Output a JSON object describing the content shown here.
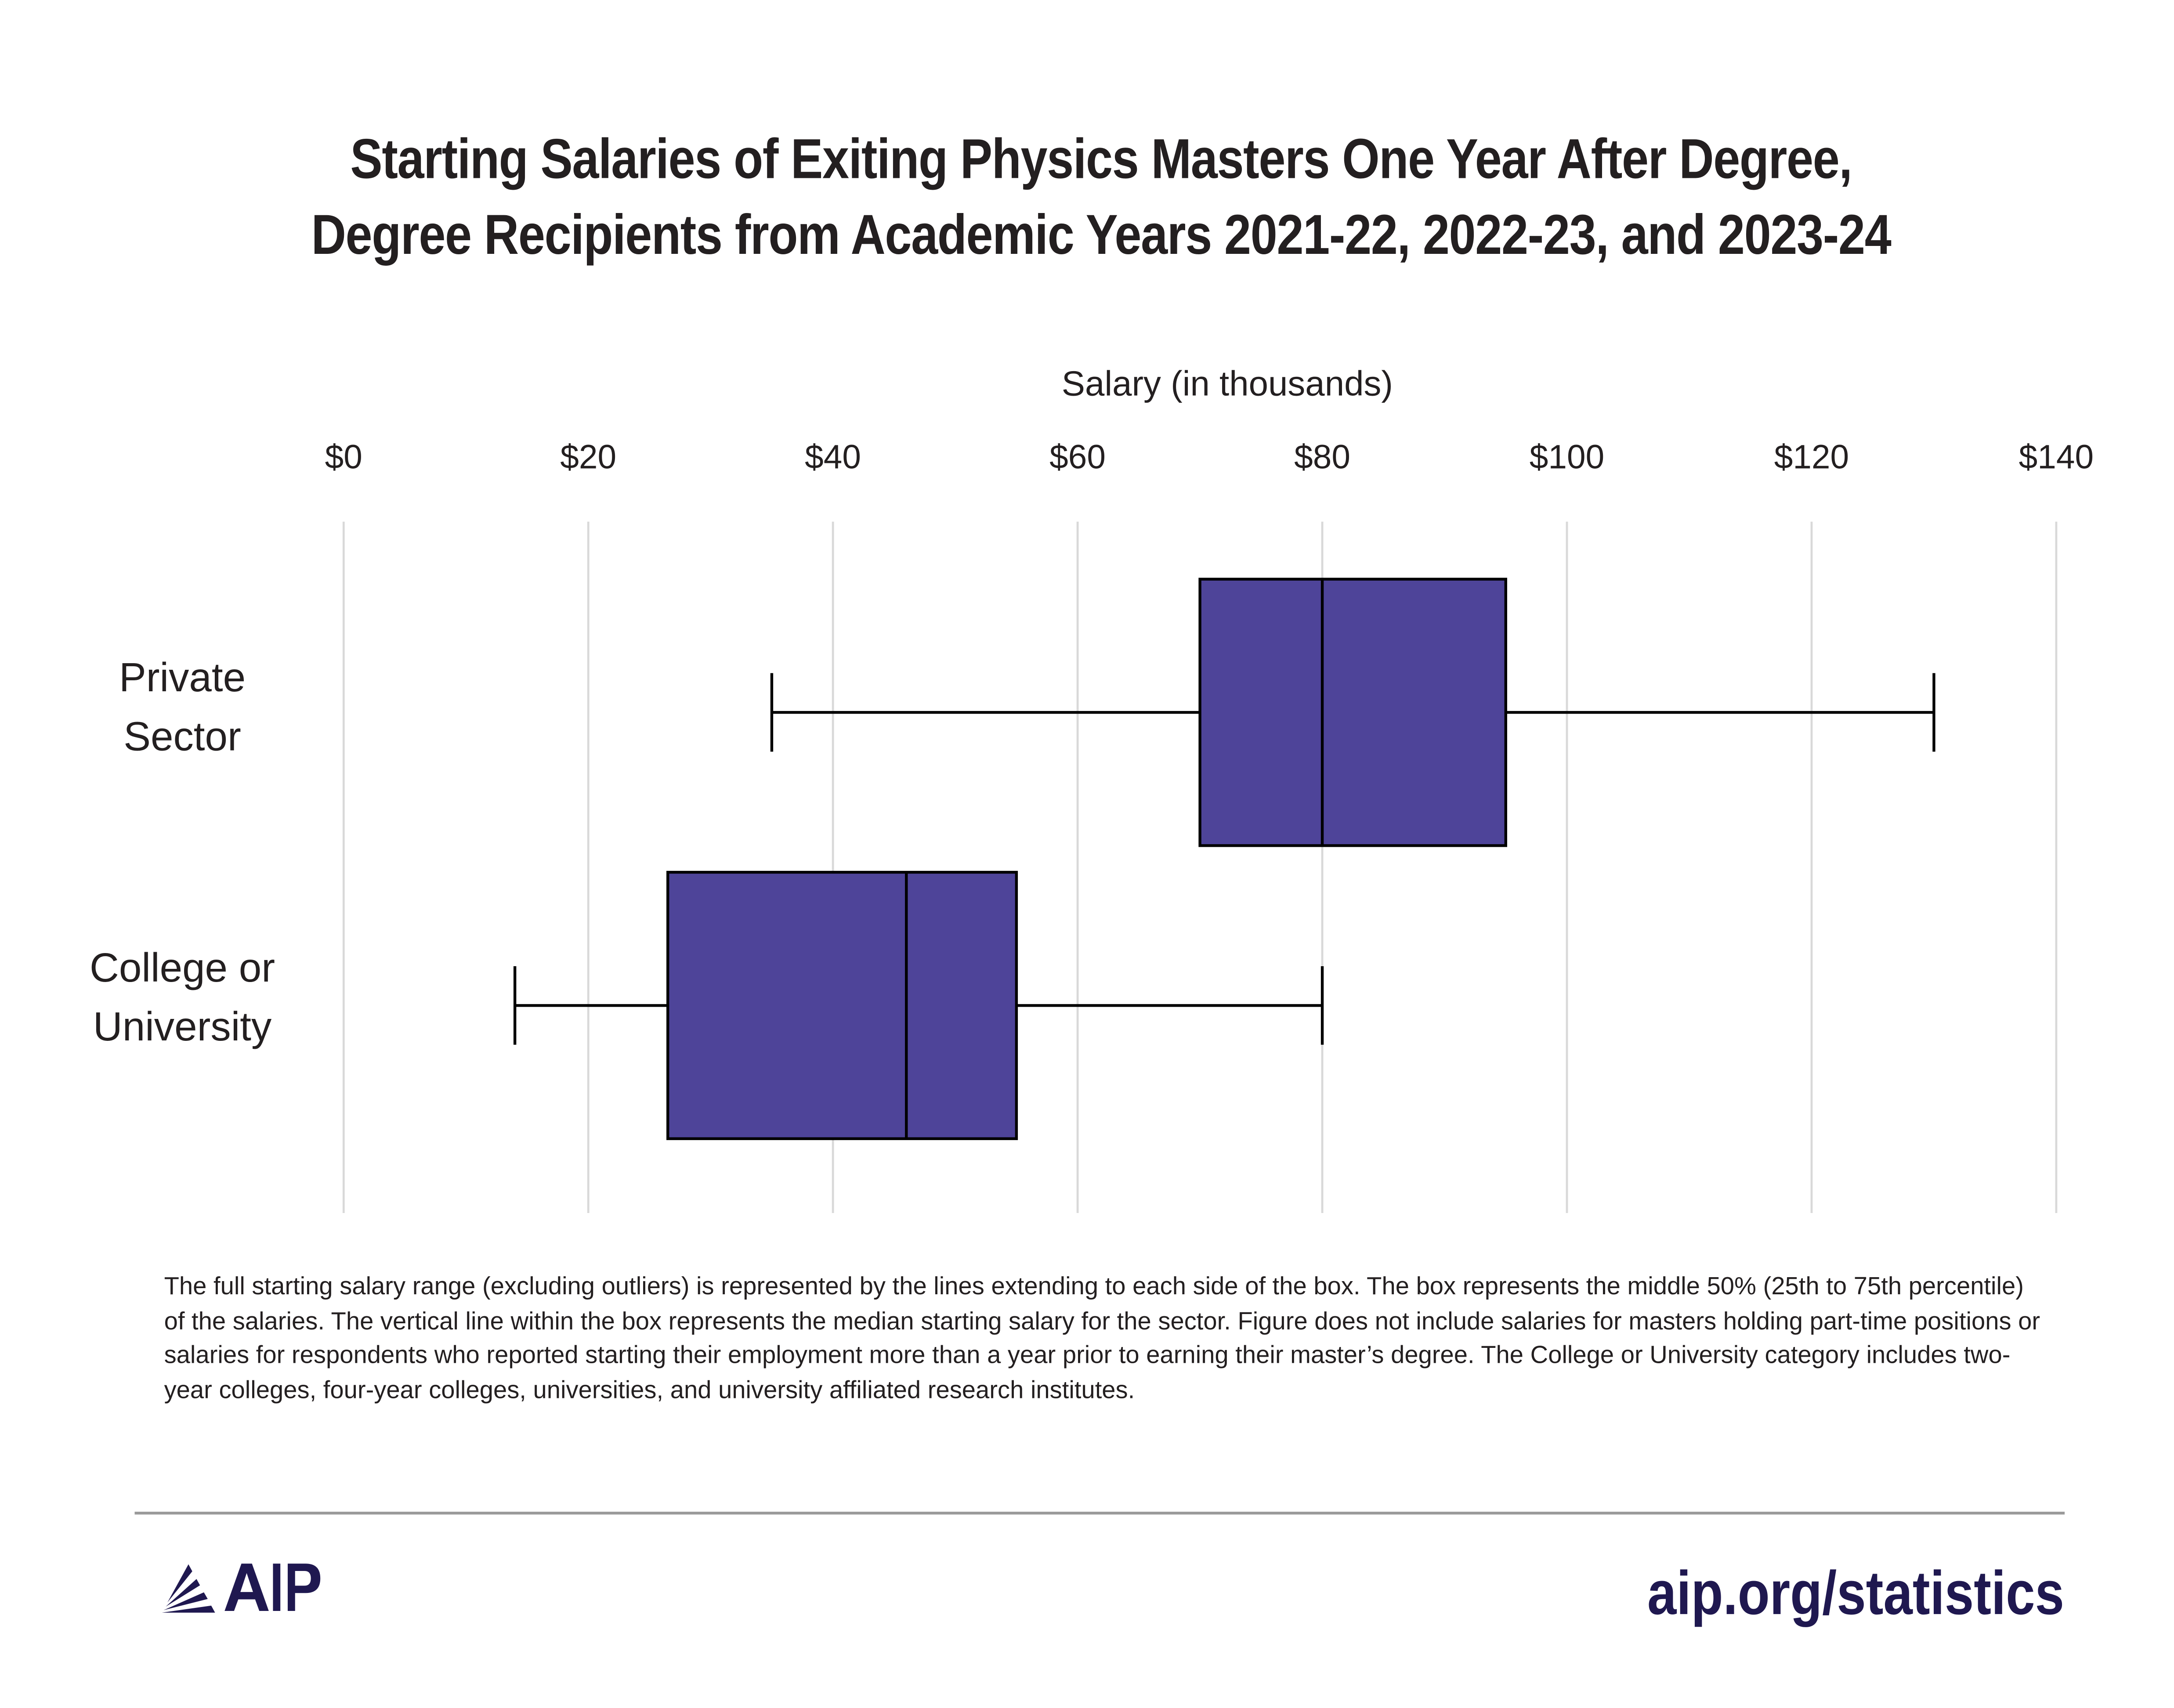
{
  "colors": {
    "box": "#4e4499",
    "brand": "#1f1850",
    "grid": "#d9d9d9"
  },
  "chart_data": {
    "type": "boxplot",
    "title": [
      "Starting Salaries of Exiting Physics Masters One Year After Degree,",
      "Degree Recipients from Academic Years 2021-22, 2022-23, and 2023-24"
    ],
    "xlabel": "Salary (in thousands)",
    "xlim": [
      0,
      140
    ],
    "ticks": [
      0,
      20,
      40,
      60,
      80,
      100,
      120,
      140
    ],
    "tick_labels": [
      "$0",
      "$20",
      "$40",
      "$60",
      "$80",
      "$100",
      "$120",
      "$140"
    ],
    "grid": true,
    "series": [
      {
        "name": "Private Sector",
        "label_lines": [
          "Private",
          "Sector"
        ],
        "min": 35,
        "q1": 70,
        "median": 80,
        "q3": 95,
        "max": 130
      },
      {
        "name": "College or University",
        "label_lines": [
          "College or",
          "University"
        ],
        "min": 14,
        "q1": 26.5,
        "median": 46,
        "q3": 55,
        "max": 80
      }
    ]
  },
  "note": "The full starting salary range (excluding outliers) is represented by the lines extending to each side of the box. The box represents the middle 50% (25th to 75th percentile) of the salaries. The vertical line within the box represents the median starting salary for the sector. Figure does not include salaries for masters holding part-time positions or salaries for respondents who  reported starting their employment more than a year prior to earning their master’s degree. The College or University category includes two-year colleges, four-year colleges, universities, and university affiliated research institutes.",
  "footer": {
    "logo": "AIP",
    "url": "aip.org/statistics"
  }
}
